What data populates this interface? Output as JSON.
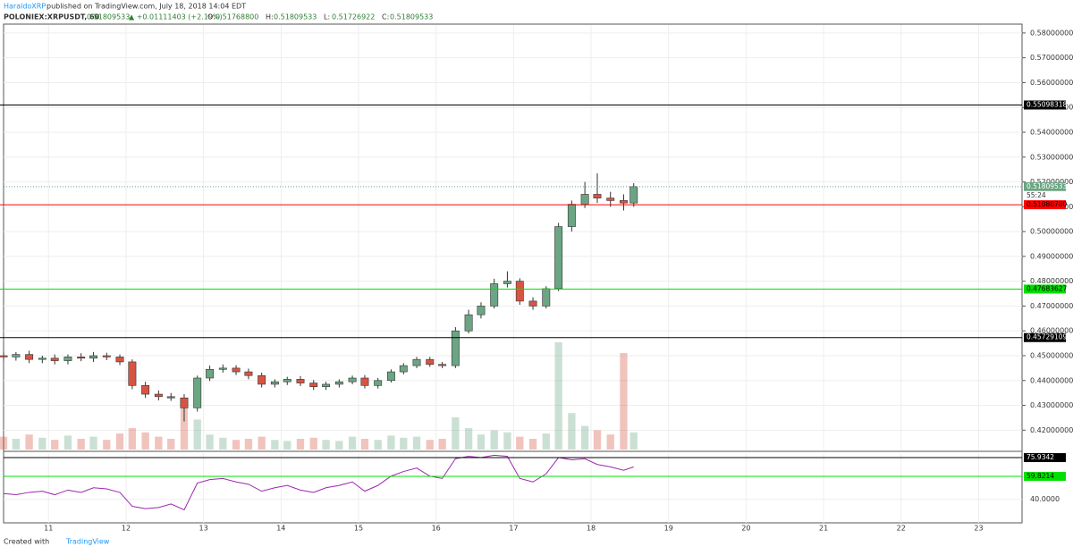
{
  "chart_data": {
    "type": "candlestick",
    "author": "HaraldoXRP",
    "published": "published on TradingView.com, July 18, 2018 14:04 EDT",
    "symbol": "POLONIEX:XRPUSDT, 60",
    "last": "0.51809533",
    "change": "▲ +0.01111403 (+2.19%)",
    "ohlc_labels": [
      "O:",
      "H:",
      "L:",
      "C:"
    ],
    "ohlc_values": [
      "0.51768800",
      "0.51809533",
      "0.51726922",
      "0.51809533"
    ],
    "footer": "Created with",
    "brand": "TradingView",
    "up_color": "#6ba583",
    "down_color": "#d75442",
    "x": [
      10.42,
      10.58,
      10.75,
      10.92,
      11.08,
      11.25,
      11.42,
      11.58,
      11.75,
      11.92,
      12.08,
      12.25,
      12.42,
      12.58,
      12.75,
      12.92,
      13.08,
      13.25,
      13.42,
      13.58,
      13.75,
      13.92,
      14.08,
      14.25,
      14.42,
      14.58,
      14.75,
      14.92,
      15.08,
      15.25,
      15.42,
      15.58,
      15.75,
      15.92,
      16.08,
      16.25,
      16.42,
      16.58,
      16.75,
      16.92,
      17.08,
      17.25,
      17.42,
      17.58,
      17.75,
      17.92,
      18.08,
      18.25,
      18.42,
      18.55
    ],
    "open": [
      0.45,
      0.4495,
      0.4505,
      0.4485,
      0.449,
      0.448,
      0.4495,
      0.449,
      0.45,
      0.4495,
      0.4475,
      0.438,
      0.4345,
      0.4335,
      0.433,
      0.429,
      0.441,
      0.4445,
      0.445,
      0.4435,
      0.442,
      0.4385,
      0.4395,
      0.4405,
      0.439,
      0.4375,
      0.4385,
      0.4395,
      0.441,
      0.438,
      0.44,
      0.4435,
      0.446,
      0.4485,
      0.4465,
      0.446,
      0.46,
      0.4665,
      0.47,
      0.479,
      0.48,
      0.472,
      0.47,
      0.477,
      0.502,
      0.511,
      0.515,
      0.5135,
      0.5125,
      0.5115
    ],
    "high": [
      0.4515,
      0.4515,
      0.452,
      0.45,
      0.4505,
      0.4505,
      0.451,
      0.4515,
      0.4512,
      0.4505,
      0.4485,
      0.4395,
      0.436,
      0.435,
      0.4345,
      0.442,
      0.446,
      0.4465,
      0.4462,
      0.4448,
      0.4432,
      0.4405,
      0.4415,
      0.4418,
      0.4402,
      0.4395,
      0.4405,
      0.442,
      0.4422,
      0.441,
      0.4445,
      0.447,
      0.4495,
      0.4495,
      0.4475,
      0.4615,
      0.4685,
      0.4715,
      0.481,
      0.484,
      0.4812,
      0.4735,
      0.478,
      0.5035,
      0.5125,
      0.52,
      0.5235,
      0.516,
      0.515,
      0.5195
    ],
    "low": [
      0.448,
      0.448,
      0.447,
      0.447,
      0.4465,
      0.4465,
      0.4478,
      0.4475,
      0.4482,
      0.4462,
      0.4365,
      0.433,
      0.432,
      0.4318,
      0.4235,
      0.4275,
      0.4398,
      0.4432,
      0.4422,
      0.4405,
      0.4372,
      0.4372,
      0.4382,
      0.4378,
      0.4362,
      0.4362,
      0.4372,
      0.4385,
      0.4368,
      0.4368,
      0.4392,
      0.4425,
      0.445,
      0.4455,
      0.445,
      0.445,
      0.459,
      0.465,
      0.469,
      0.4775,
      0.4705,
      0.4685,
      0.469,
      0.476,
      0.5,
      0.5095,
      0.5115,
      0.51,
      0.5085,
      0.51
    ],
    "close": [
      0.4495,
      0.4505,
      0.4485,
      0.449,
      0.448,
      0.4495,
      0.449,
      0.45,
      0.4495,
      0.4475,
      0.438,
      0.4345,
      0.4335,
      0.433,
      0.429,
      0.441,
      0.4445,
      0.445,
      0.4435,
      0.442,
      0.4385,
      0.4395,
      0.4405,
      0.439,
      0.4375,
      0.4385,
      0.4395,
      0.441,
      0.438,
      0.44,
      0.4435,
      0.446,
      0.4485,
      0.4465,
      0.446,
      0.46,
      0.4665,
      0.47,
      0.479,
      0.48,
      0.472,
      0.47,
      0.477,
      0.502,
      0.511,
      0.515,
      0.5135,
      0.5125,
      0.5115,
      0.5181
    ],
    "volume": [
      12,
      10,
      14,
      11,
      9,
      13,
      10,
      12,
      9,
      15,
      20,
      16,
      12,
      10,
      40,
      28,
      14,
      11,
      9,
      10,
      12,
      9,
      8,
      10,
      11,
      9,
      8,
      12,
      10,
      9,
      13,
      11,
      12,
      9,
      10,
      30,
      20,
      14,
      18,
      16,
      12,
      10,
      15,
      100,
      34,
      22,
      18,
      14,
      90,
      16
    ],
    "vol_lim": [
      0,
      100
    ],
    "rsi": [
      45,
      44,
      46,
      47,
      44,
      48,
      46,
      50,
      49,
      46,
      34,
      32,
      33,
      36,
      31,
      54,
      57,
      58,
      55,
      53,
      47,
      50,
      52,
      48,
      46,
      50,
      52,
      55,
      47,
      52,
      60,
      64,
      67,
      60,
      58,
      75,
      77,
      76,
      78,
      77,
      58,
      55,
      62,
      76,
      74,
      75,
      70,
      68,
      65,
      68
    ],
    "rsi_color": "#9c27b0",
    "xlim": [
      10.42,
      23.56
    ],
    "xticks": [
      11,
      12,
      13,
      14,
      15,
      16,
      17,
      18,
      19,
      20,
      21,
      22,
      23
    ],
    "ylim": [
      0.4122,
      0.5832
    ],
    "yticks": [
      {
        "value": 0.42,
        "label": "0.42000000"
      },
      {
        "value": 0.43,
        "label": "0.43000000"
      },
      {
        "value": 0.44,
        "label": "0.44000000"
      },
      {
        "value": 0.45,
        "label": "0.45000000"
      },
      {
        "value": 0.46,
        "label": "0.46000000"
      },
      {
        "value": 0.47,
        "label": "0.47000000"
      },
      {
        "value": 0.48,
        "label": "0.48000000"
      },
      {
        "value": 0.49,
        "label": "0.49000000"
      },
      {
        "value": 0.5,
        "label": "0.50000000"
      },
      {
        "value": 0.51,
        "label": "0.51000000"
      },
      {
        "value": 0.52,
        "label": "0.52000000"
      },
      {
        "value": 0.53,
        "label": "0.53000000"
      },
      {
        "value": 0.54,
        "label": "0.54000000"
      },
      {
        "value": 0.55,
        "label": "0.55000000"
      },
      {
        "value": 0.56,
        "label": "0.56000000"
      },
      {
        "value": 0.57,
        "label": "0.57000000"
      },
      {
        "value": 0.58,
        "label": "0.58000000"
      }
    ],
    "price_lines": [
      {
        "value": 0.55098318,
        "color": "#000000"
      },
      {
        "value": 0.5108078,
        "label": "0.51080780",
        "color": "#ff0000"
      },
      {
        "value": 0.47683627,
        "color": "#00e000"
      },
      {
        "value": 0.45729109,
        "color": "#000000"
      }
    ],
    "current_price": 0.51809533,
    "countdown": "55:24",
    "current_color": "#6ba583",
    "rsi_lim": [
      19.8,
      79.8
    ],
    "rsi_ticks": [
      {
        "value": 40,
        "label": "40.0000"
      }
    ],
    "rsi_lines": [
      {
        "value": 75.9342,
        "color": "#000000"
      },
      {
        "value": 59.8214,
        "color": "#00e000"
      }
    ],
    "grid": true
  }
}
